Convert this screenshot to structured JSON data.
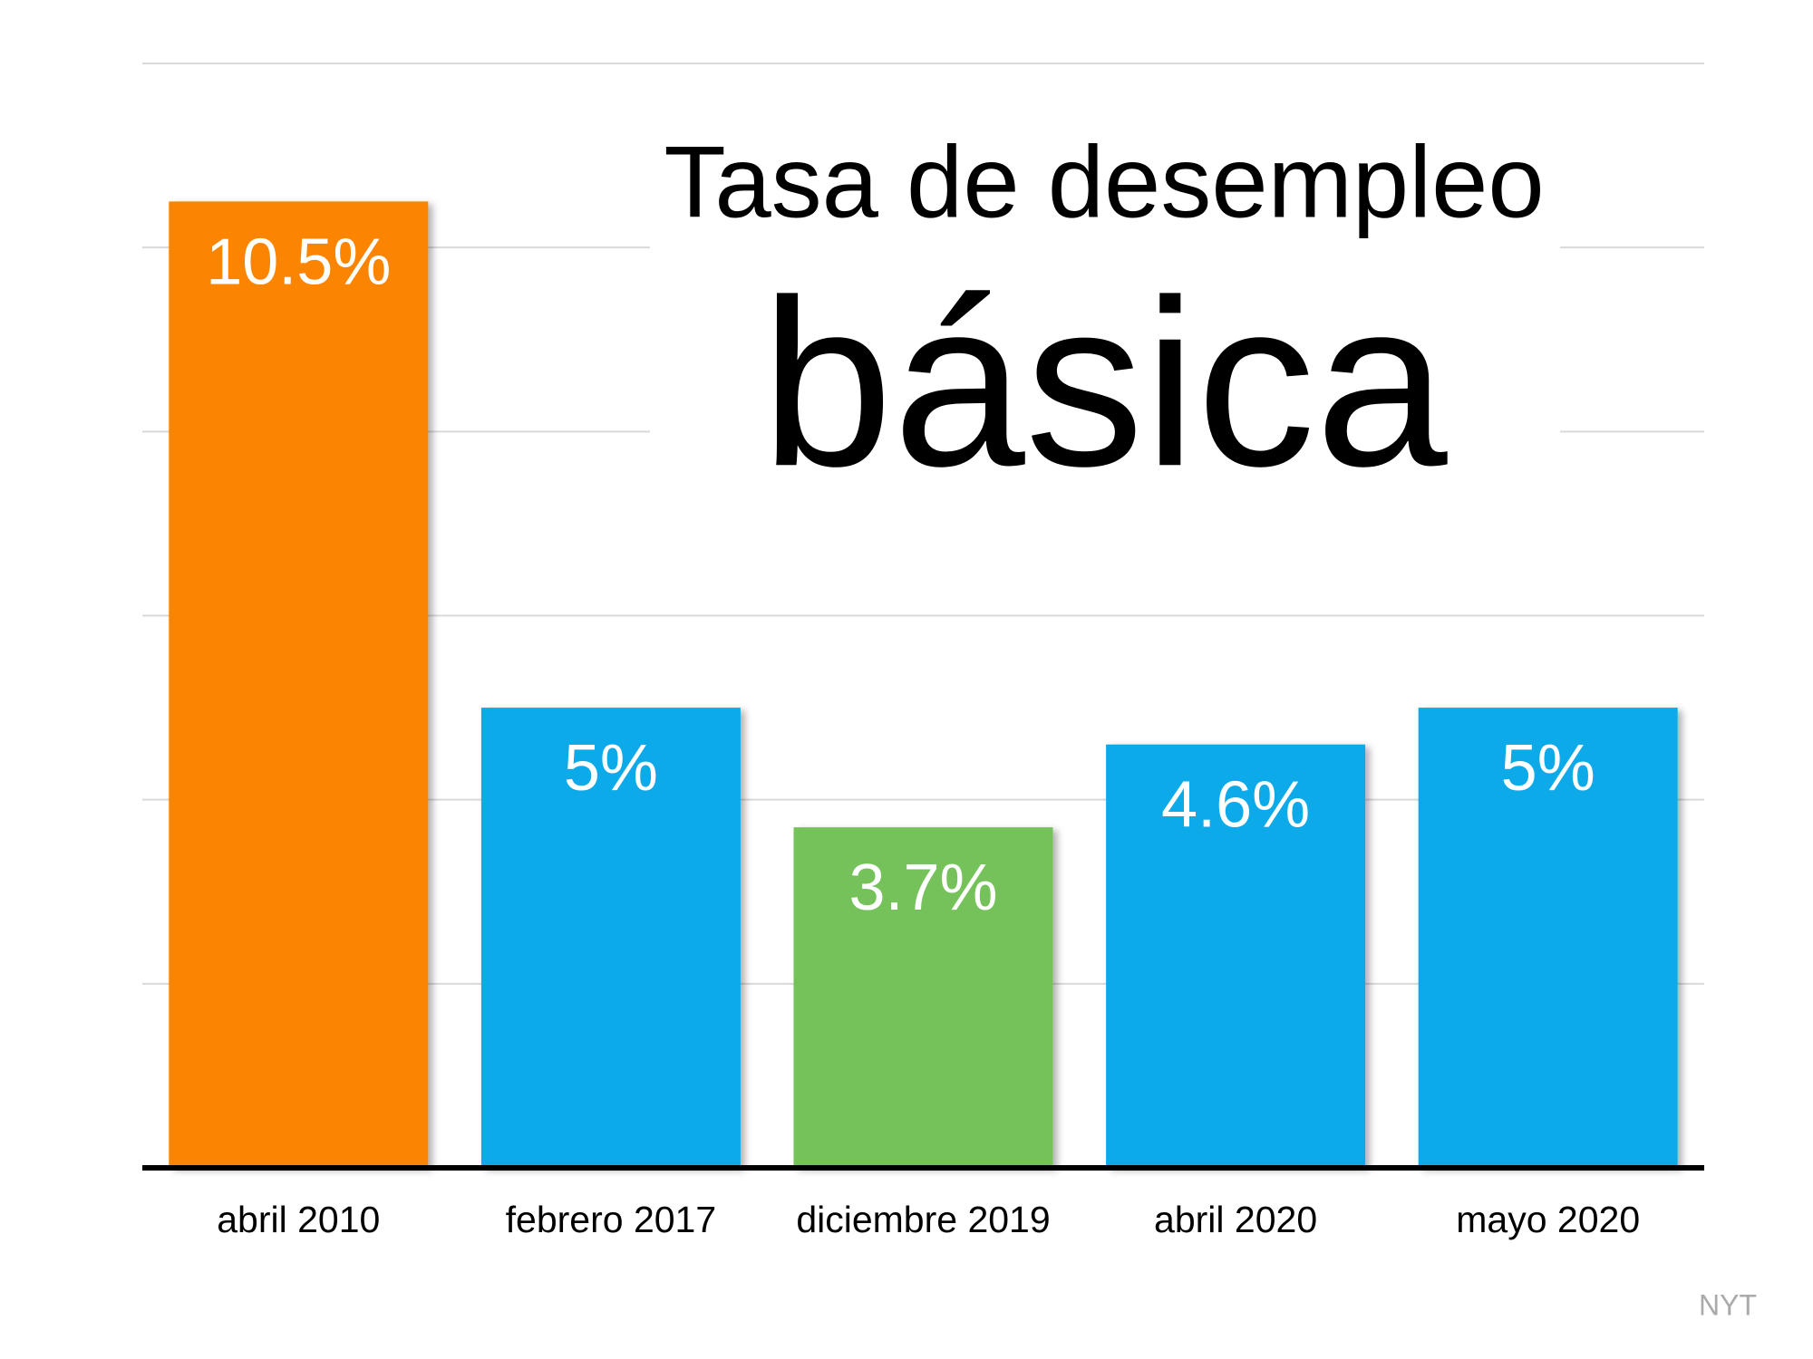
{
  "chart_data": {
    "type": "bar",
    "title": "Tasa de desempleo",
    "subtitle": "básica",
    "categories": [
      "abril 2010",
      "febrero 2017",
      "diciembre 2019",
      "abril 2020",
      "mayo 2020"
    ],
    "values": [
      10.5,
      5,
      3.7,
      4.6,
      5
    ],
    "value_labels": [
      "10.5%",
      "5%",
      "3.7%",
      "4.6%",
      "5%"
    ],
    "colors": [
      "#fb8500",
      "#0eaaea",
      "#75c25a",
      "#0eaaea",
      "#0eaaea"
    ],
    "ylim": [
      0,
      12
    ],
    "yticks": [
      0,
      2,
      4,
      6,
      8,
      10,
      12
    ],
    "grid": true,
    "source": "NYT"
  }
}
